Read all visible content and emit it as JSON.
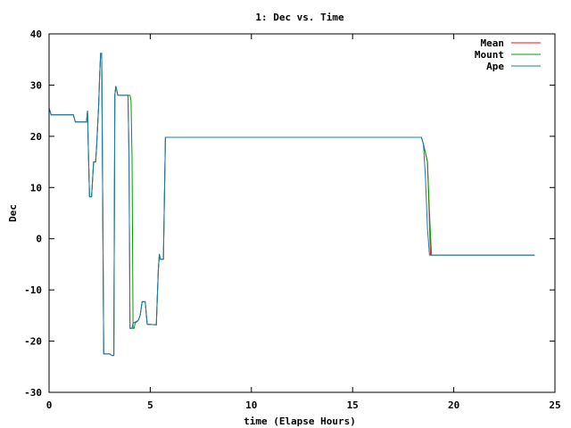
{
  "chart_data": {
    "type": "line",
    "title": "1: Dec vs. Time",
    "xlabel": "time (Elapse Hours)",
    "ylabel": "Dec",
    "xlim": [
      0,
      25
    ],
    "ylim": [
      -30,
      40
    ],
    "xticks": [
      0,
      5,
      10,
      15,
      20,
      25
    ],
    "yticks": [
      -30,
      -20,
      -10,
      0,
      10,
      20,
      30,
      40
    ],
    "grid": false,
    "legend_position": "top-right",
    "series": [
      {
        "name": "Mean",
        "color": "#e41a1c",
        "points": [
          [
            0,
            25.5
          ],
          [
            0.1,
            24.2
          ],
          [
            1.2,
            24.2
          ],
          [
            1.3,
            22.8
          ],
          [
            1.85,
            22.8
          ],
          [
            1.9,
            25
          ],
          [
            1.95,
            16
          ],
          [
            2.0,
            8.2
          ],
          [
            2.1,
            8.2
          ],
          [
            2.2,
            15
          ],
          [
            2.3,
            15
          ],
          [
            2.35,
            18
          ],
          [
            2.45,
            26
          ],
          [
            2.5,
            32
          ],
          [
            2.55,
            36.2
          ],
          [
            2.6,
            36.2
          ],
          [
            2.65,
            8
          ],
          [
            2.7,
            -22.5
          ],
          [
            3.0,
            -22.5
          ],
          [
            3.1,
            -22.8
          ],
          [
            3.2,
            -22.8
          ],
          [
            3.25,
            28
          ],
          [
            3.3,
            29.8
          ],
          [
            3.4,
            28
          ],
          [
            3.9,
            28
          ],
          [
            3.95,
            16
          ],
          [
            4.0,
            -17.5
          ],
          [
            4.1,
            -17.5
          ],
          [
            4.15,
            -16.5
          ],
          [
            4.4,
            -16
          ],
          [
            4.5,
            -15
          ],
          [
            4.6,
            -12.3
          ],
          [
            4.75,
            -12.3
          ],
          [
            4.85,
            -16.7
          ],
          [
            5.3,
            -16.8
          ],
          [
            5.4,
            -6
          ],
          [
            5.45,
            -3
          ],
          [
            5.5,
            -4
          ],
          [
            5.65,
            -4
          ],
          [
            5.75,
            19.8
          ],
          [
            18.4,
            19.8
          ],
          [
            18.5,
            18.5
          ],
          [
            18.7,
            15
          ],
          [
            18.85,
            -3.2
          ],
          [
            24,
            -3.2
          ]
        ]
      },
      {
        "name": "Mount",
        "color": "#00a000",
        "points": [
          [
            0,
            25.5
          ],
          [
            0.1,
            24.2
          ],
          [
            1.2,
            24.2
          ],
          [
            1.3,
            22.8
          ],
          [
            1.85,
            22.8
          ],
          [
            1.9,
            25
          ],
          [
            1.95,
            16
          ],
          [
            2.0,
            8.2
          ],
          [
            2.1,
            8.2
          ],
          [
            2.2,
            15
          ],
          [
            2.3,
            15
          ],
          [
            2.35,
            18
          ],
          [
            2.45,
            26
          ],
          [
            2.5,
            32
          ],
          [
            2.55,
            36.2
          ],
          [
            2.6,
            36.2
          ],
          [
            2.65,
            8
          ],
          [
            2.7,
            -22.5
          ],
          [
            3.0,
            -22.5
          ],
          [
            3.1,
            -22.8
          ],
          [
            3.2,
            -22.8
          ],
          [
            3.25,
            28
          ],
          [
            3.3,
            29.8
          ],
          [
            3.4,
            28
          ],
          [
            4.0,
            28
          ],
          [
            4.05,
            27
          ],
          [
            4.1,
            16
          ],
          [
            4.15,
            -17.5
          ],
          [
            4.2,
            -17.5
          ],
          [
            4.25,
            -16.5
          ],
          [
            4.4,
            -16
          ],
          [
            4.5,
            -15
          ],
          [
            4.6,
            -12.3
          ],
          [
            4.75,
            -12.3
          ],
          [
            4.85,
            -16.7
          ],
          [
            5.3,
            -16.8
          ],
          [
            5.4,
            -6
          ],
          [
            5.45,
            -3
          ],
          [
            5.5,
            -4
          ],
          [
            5.65,
            -4
          ],
          [
            5.75,
            19.8
          ],
          [
            18.4,
            19.8
          ],
          [
            18.5,
            18.5
          ],
          [
            18.7,
            15
          ],
          [
            18.8,
            5
          ],
          [
            18.9,
            -3.2
          ],
          [
            24,
            -3.2
          ]
        ]
      },
      {
        "name": "Ape",
        "color": "#1f78b4",
        "points": [
          [
            0,
            25.5
          ],
          [
            0.1,
            24.2
          ],
          [
            1.2,
            24.2
          ],
          [
            1.3,
            22.8
          ],
          [
            1.85,
            22.8
          ],
          [
            1.9,
            25
          ],
          [
            1.95,
            16
          ],
          [
            2.0,
            8.2
          ],
          [
            2.1,
            8.2
          ],
          [
            2.2,
            15
          ],
          [
            2.3,
            15
          ],
          [
            2.35,
            18
          ],
          [
            2.45,
            26
          ],
          [
            2.5,
            32
          ],
          [
            2.55,
            36.2
          ],
          [
            2.6,
            36.2
          ],
          [
            2.65,
            8
          ],
          [
            2.7,
            -22.5
          ],
          [
            3.0,
            -22.5
          ],
          [
            3.1,
            -22.8
          ],
          [
            3.2,
            -22.8
          ],
          [
            3.25,
            28
          ],
          [
            3.3,
            29.8
          ],
          [
            3.4,
            28
          ],
          [
            3.9,
            28
          ],
          [
            3.95,
            16
          ],
          [
            4.0,
            -17.5
          ],
          [
            4.1,
            -17.5
          ],
          [
            4.15,
            -16.5
          ],
          [
            4.4,
            -16
          ],
          [
            4.5,
            -15
          ],
          [
            4.6,
            -12.3
          ],
          [
            4.75,
            -12.3
          ],
          [
            4.85,
            -16.7
          ],
          [
            5.3,
            -16.8
          ],
          [
            5.4,
            -6
          ],
          [
            5.45,
            -3
          ],
          [
            5.5,
            -4
          ],
          [
            5.65,
            -4
          ],
          [
            5.75,
            19.8
          ],
          [
            18.4,
            19.8
          ],
          [
            18.5,
            18.5
          ],
          [
            18.6,
            12
          ],
          [
            18.7,
            2
          ],
          [
            18.8,
            -3.2
          ],
          [
            24,
            -3.2
          ]
        ]
      }
    ]
  }
}
